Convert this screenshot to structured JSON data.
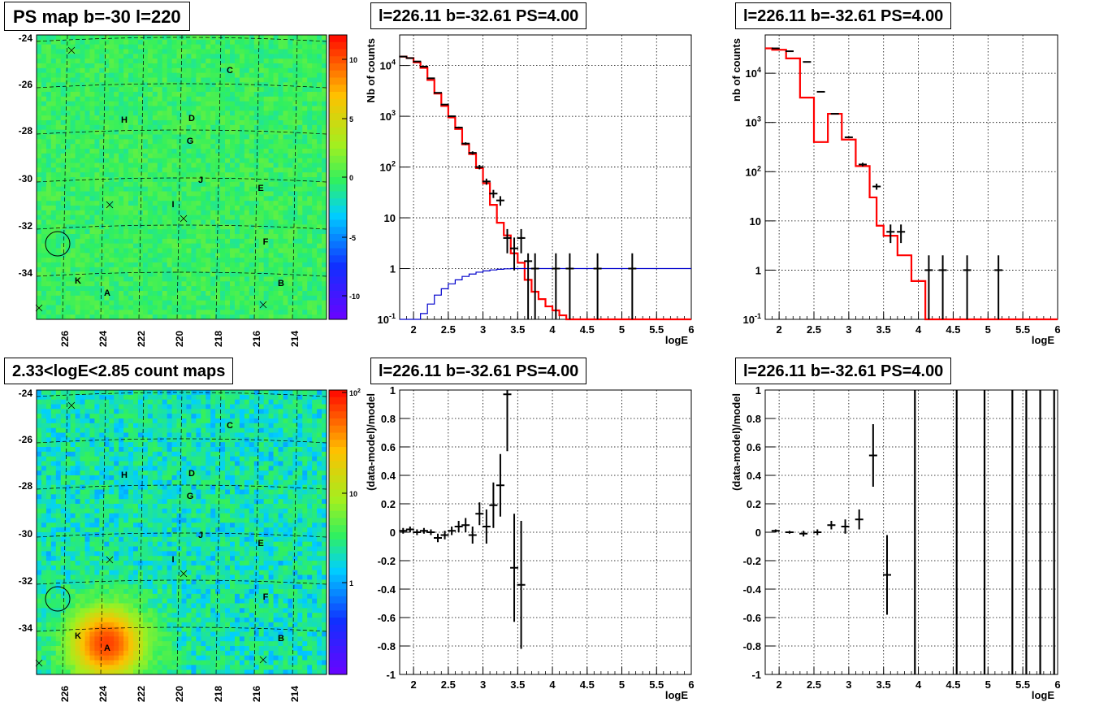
{
  "panels": [
    {
      "title": "PS map b=-30 l=220"
    },
    {
      "title": "l=226.11 b=-32.61 PS=4.00"
    },
    {
      "title": "l=226.11 b=-32.61 PS=4.00"
    },
    {
      "title": "2.33<logE<2.85 count maps"
    },
    {
      "title": "l=226.11 b=-32.61 PS=4.00"
    },
    {
      "title": "l=226.11 b=-32.61 PS=4.00"
    }
  ],
  "colors": {
    "data": "#000000",
    "model": "#ff0000",
    "efficiency": "#0000cc",
    "grid": "#000000"
  },
  "chart_data": [
    {
      "type": "heatmap",
      "title": "PS map b=-30 l=220",
      "x_ticks": [
        "226",
        "224",
        "222",
        "220",
        "218",
        "216",
        "214"
      ],
      "y_ticks": [
        "-24",
        "-26",
        "-28",
        "-30",
        "-32",
        "-34"
      ],
      "colorbar_ticks": [
        "10",
        "5",
        "0",
        "-5",
        "-10"
      ],
      "colorbar_range": [
        -12,
        12
      ],
      "source_labels": [
        "C",
        "H",
        "D",
        "G",
        "J",
        "E",
        "I",
        "F",
        "K",
        "B",
        "A"
      ],
      "description_markers": "x crosses and a circle at l=226.11 b=-32.61"
    },
    {
      "type": "line",
      "title": "l=226.11 b=-32.61 PS=4.00",
      "xlabel": "logE",
      "ylabel": "Nb of counts",
      "xlim": [
        1.8,
        6
      ],
      "ylim": [
        0.1,
        40000
      ],
      "log_y": true,
      "grid": true,
      "x_ticks": [
        "2",
        "2.5",
        "3",
        "3.5",
        "4",
        "4.5",
        "5",
        "5.5",
        "6"
      ],
      "y_ticks": [
        "10^4",
        "10^3",
        "10^2",
        "10",
        "1",
        "10^-1"
      ],
      "series": [
        {
          "kind": "histogram",
          "edges": [
            1.8,
            1.9,
            2.0,
            2.1,
            2.2,
            2.3,
            2.4,
            2.5,
            2.6,
            2.7,
            2.8,
            2.9,
            3.0,
            3.1,
            3.2,
            3.3,
            3.4,
            3.5,
            3.6,
            3.7,
            3.8,
            3.9,
            4.0,
            4.1,
            4.2,
            6.0
          ],
          "values": [
            15000,
            14000,
            11500,
            9000,
            5200,
            2800,
            1600,
            950,
            560,
            280,
            180,
            95,
            48,
            18,
            8,
            4.5,
            2,
            1.3,
            0.6,
            0.35,
            0.25,
            0.18,
            0.15,
            0.12,
            0.1
          ]
        },
        {
          "kind": "points",
          "x": [
            1.85,
            1.95,
            2.05,
            2.15,
            2.25,
            2.35,
            2.45,
            2.55,
            2.65,
            2.75,
            2.85,
            2.95,
            3.05,
            3.15,
            3.25,
            3.35,
            3.45,
            3.55,
            3.65,
            3.75,
            4.05,
            4.25,
            4.65,
            5.15
          ],
          "y": [
            15000,
            14000,
            12000,
            9500,
            5600,
            2900,
            1700,
            1000,
            600,
            290,
            190,
            100,
            52,
            30,
            22,
            4,
            2.5,
            4,
            1.4,
            1,
            1,
            1,
            1,
            1
          ]
        },
        {
          "kind": "efficiency",
          "edges": [
            1.8,
            2.0,
            2.1,
            2.2,
            2.3,
            2.4,
            2.5,
            2.6,
            2.7,
            2.8,
            2.9,
            3.0,
            3.1,
            3.2,
            3.3,
            3.4,
            3.5,
            6.0
          ],
          "values": [
            0.08,
            0.1,
            0.13,
            0.2,
            0.3,
            0.4,
            0.5,
            0.6,
            0.7,
            0.78,
            0.85,
            0.9,
            0.94,
            0.97,
            0.99,
            1.0,
            1.0
          ]
        }
      ]
    },
    {
      "type": "line",
      "title": "l=226.11 b=-32.61 PS=4.00",
      "xlabel": "logE",
      "ylabel": "nb of counts",
      "xlim": [
        1.8,
        6
      ],
      "ylim": [
        0.1,
        60000
      ],
      "log_y": true,
      "grid": true,
      "x_ticks": [
        "2",
        "2.5",
        "3",
        "3.5",
        "4",
        "4.5",
        "5",
        "5.5",
        "6"
      ],
      "y_ticks": [
        "10^4",
        "10^3",
        "10^2",
        "10",
        "1",
        "10^-1"
      ],
      "series": [
        {
          "kind": "histogram",
          "edges": [
            1.8,
            1.9,
            2.1,
            2.3,
            2.5,
            2.7,
            2.9,
            3.1,
            3.3,
            3.4,
            3.5,
            3.7,
            3.9,
            4.1,
            6.0
          ],
          "values": [
            32000,
            30000,
            20000,
            3200,
            400,
            1500,
            450,
            130,
            30,
            8,
            5,
            2,
            0.6,
            0.1
          ]
        },
        {
          "kind": "points",
          "x": [
            1.95,
            2.15,
            2.4,
            2.6,
            2.8,
            3.0,
            3.2,
            3.4,
            3.6,
            3.75,
            4.15,
            4.35,
            4.7,
            5.15
          ],
          "y": [
            32000,
            28000,
            17000,
            4200,
            1500,
            500,
            140,
            50,
            6,
            6,
            1,
            1,
            1,
            1
          ]
        }
      ]
    },
    {
      "type": "heatmap",
      "title": "2.33<logE<2.85 count maps",
      "x_ticks": [
        "226",
        "224",
        "222",
        "220",
        "218",
        "216",
        "214"
      ],
      "y_ticks": [
        "-24",
        "-26",
        "-28",
        "-30",
        "-32",
        "-34"
      ],
      "colorbar_ticks": [
        "10^2",
        "10",
        "1"
      ],
      "colorbar_range_log": [
        0.1,
        200
      ],
      "source_labels": [
        "C",
        "H",
        "D",
        "G",
        "J",
        "E",
        "I",
        "F",
        "K",
        "B",
        "A"
      ]
    },
    {
      "type": "scatter",
      "title": "l=226.11 b=-32.61 PS=4.00",
      "xlabel": "logE",
      "ylabel": "(data-model)/model",
      "xlim": [
        1.8,
        6
      ],
      "ylim": [
        -1,
        1
      ],
      "grid": true,
      "x_ticks": [
        "2",
        "2.5",
        "3",
        "3.5",
        "4",
        "4.5",
        "5",
        "5.5",
        "6"
      ],
      "y_ticks": [
        "1",
        "0.8",
        "0.6",
        "0.4",
        "0.2",
        "0",
        "-0.2",
        "-0.4",
        "-0.6",
        "-0.8",
        "-1"
      ],
      "points": {
        "x": [
          1.85,
          1.95,
          2.05,
          2.15,
          2.25,
          2.35,
          2.45,
          2.55,
          2.65,
          2.75,
          2.85,
          2.95,
          3.05,
          3.15,
          3.25,
          3.35,
          3.45,
          3.55
        ],
        "y": [
          0.01,
          0.02,
          0.0,
          0.01,
          0.0,
          -0.04,
          -0.02,
          0.01,
          0.04,
          0.05,
          -0.02,
          0.13,
          0.04,
          0.19,
          0.33,
          0.97,
          -0.25,
          -0.37
        ],
        "err": [
          0.02,
          0.02,
          0.02,
          0.02,
          0.02,
          0.03,
          0.03,
          0.03,
          0.04,
          0.05,
          0.06,
          0.08,
          0.12,
          0.16,
          0.22,
          0.4,
          0.38,
          0.45
        ]
      }
    },
    {
      "type": "scatter",
      "title": "l=226.11 b=-32.61 PS=4.00",
      "xlabel": "logE",
      "ylabel": "(data-model)/model",
      "xlim": [
        1.8,
        6
      ],
      "ylim": [
        -1,
        1
      ],
      "grid": true,
      "x_ticks": [
        "2",
        "2.5",
        "3",
        "3.5",
        "4",
        "4.5",
        "5",
        "5.5",
        "6"
      ],
      "y_ticks": [
        "1",
        "0.8",
        "0.6",
        "0.4",
        "0.2",
        "0",
        "-0.2",
        "-0.4",
        "-0.6",
        "-0.8",
        "-1"
      ],
      "points": {
        "x": [
          1.95,
          2.15,
          2.35,
          2.55,
          2.75,
          2.95,
          3.15,
          3.35,
          3.55
        ],
        "y": [
          0.01,
          0.0,
          -0.01,
          0.0,
          0.05,
          0.04,
          0.09,
          0.54,
          -0.3
        ],
        "err": [
          0.01,
          0.01,
          0.02,
          0.02,
          0.03,
          0.05,
          0.07,
          0.22,
          0.28
        ]
      },
      "vertical_lines_x": [
        3.95,
        4.55,
        4.95,
        5.35,
        5.55,
        5.75,
        5.95
      ]
    }
  ]
}
